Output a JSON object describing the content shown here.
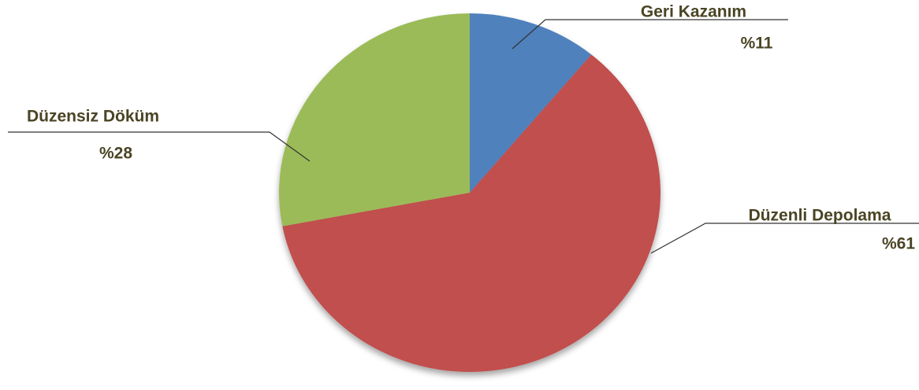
{
  "chart_data": {
    "type": "pie",
    "categories": [
      "Geri Kazanım",
      "Düzenli Depolama",
      "Düzensiz Döküm"
    ],
    "values": [
      11,
      61,
      28
    ],
    "value_labels": [
      "%11",
      "%61",
      "%28"
    ],
    "colors": [
      "#4f81bd",
      "#c0504d",
      "#9bbb59"
    ]
  }
}
